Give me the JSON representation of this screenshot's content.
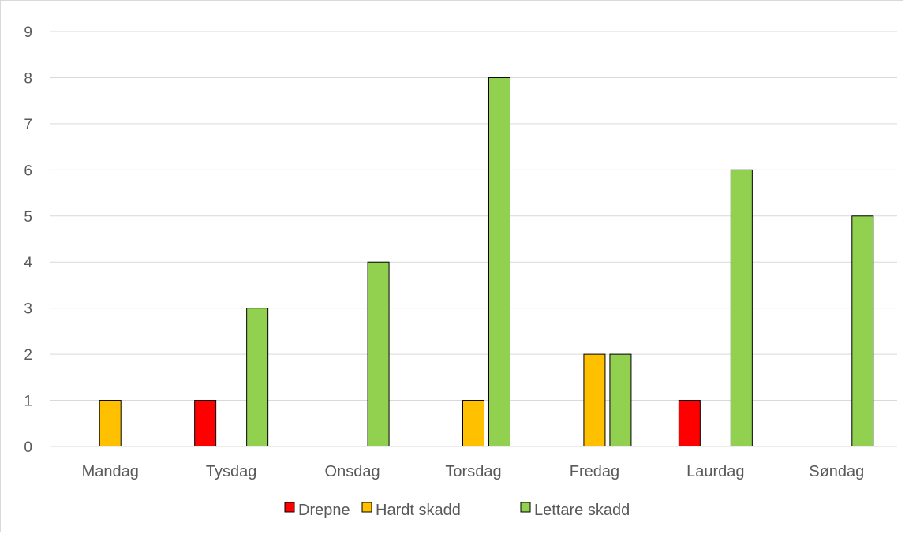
{
  "chart_data": {
    "type": "bar",
    "categories": [
      "Mandag",
      "Tysdag",
      "Onsdag",
      "Torsdag",
      "Fredag",
      "Laurdag",
      "Søndag"
    ],
    "series": [
      {
        "name": "Drepne",
        "color": "#ff0000",
        "values": [
          0,
          1,
          0,
          0,
          0,
          1,
          0
        ]
      },
      {
        "name": "Hardt skadd",
        "color": "#ffc000",
        "values": [
          1,
          0,
          0,
          1,
          2,
          0,
          0
        ]
      },
      {
        "name": "Lettare skadd",
        "color": "#92d050",
        "values": [
          0,
          3,
          4,
          8,
          2,
          6,
          5
        ]
      }
    ],
    "yticks": [
      "0",
      "1",
      "2",
      "3",
      "4",
      "5",
      "6",
      "7",
      "8",
      "9"
    ],
    "ylim": [
      0,
      9
    ],
    "grid": true,
    "legend_position": "bottom"
  }
}
